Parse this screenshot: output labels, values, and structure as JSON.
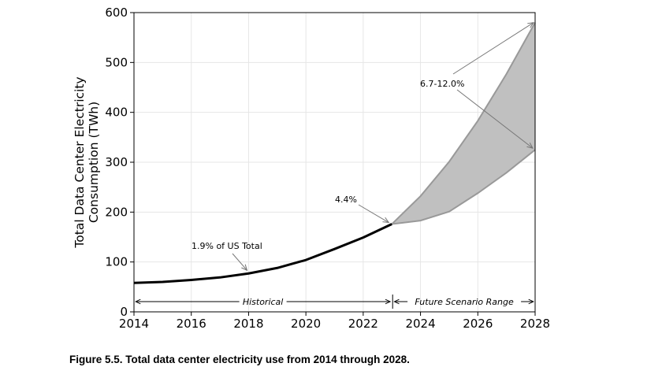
{
  "chart_data": {
    "type": "line",
    "ylabel": "Total Data Center Electricity Consumption (TWh)",
    "ylabel_lines": [
      "Total Data Center Electricity",
      "Consumption (TWh)"
    ],
    "xlim": [
      2014,
      2028
    ],
    "ylim": [
      0,
      600
    ],
    "x_ticks": [
      2014,
      2016,
      2018,
      2020,
      2022,
      2024,
      2026,
      2028
    ],
    "y_ticks": [
      0,
      100,
      200,
      300,
      400,
      500,
      600
    ],
    "grid": true,
    "historical": {
      "x": [
        2014,
        2015,
        2016,
        2017,
        2018,
        2019,
        2020,
        2021,
        2022,
        2023
      ],
      "y": [
        58,
        60,
        64,
        69,
        77,
        88,
        104,
        126,
        149,
        176
      ]
    },
    "scenario_low": {
      "x": [
        2023,
        2024,
        2025,
        2026,
        2027,
        2028
      ],
      "y": [
        176,
        183,
        201,
        238,
        279,
        325
      ]
    },
    "scenario_high": {
      "x": [
        2023,
        2024,
        2025,
        2026,
        2027,
        2028
      ],
      "y": [
        176,
        232,
        301,
        383,
        477,
        580
      ]
    },
    "annotations": [
      {
        "text": "1.9% of US Total",
        "x": 2018,
        "y": 77
      },
      {
        "text": "4.4%",
        "x": 2023,
        "y": 176
      },
      {
        "text": "6.7-12.0%",
        "targets": [
          [
            2028,
            580
          ],
          [
            2028,
            325
          ]
        ]
      }
    ],
    "regions": [
      {
        "label": "Historical",
        "from": 2014,
        "to": 2023
      },
      {
        "label": "Future Scenario Range",
        "from": 2023,
        "to": 2028
      }
    ],
    "colors": {
      "historical": "#000000",
      "scenario_line": "#999999",
      "scenario_fill": "#c0c0c0",
      "grid": "#e6e6e6"
    }
  },
  "caption": "Figure 5.5.  Total data center electricity use from 2014 through 2028."
}
